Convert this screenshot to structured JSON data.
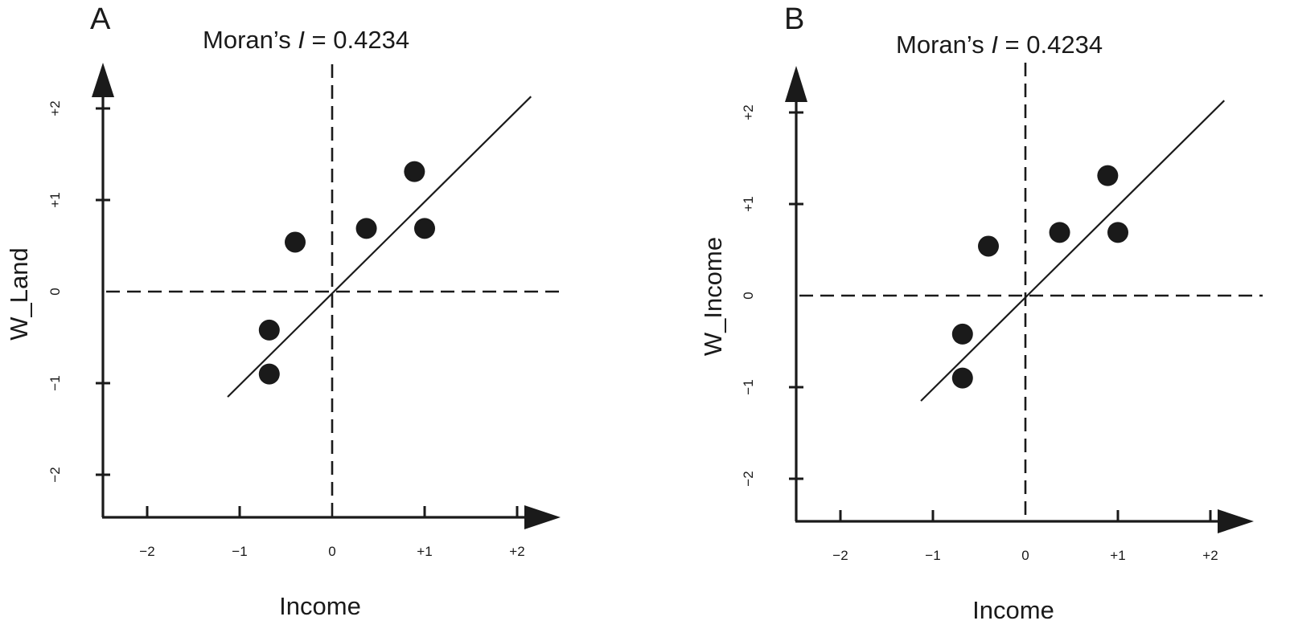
{
  "colors": {
    "ink": "#1a1a1a",
    "background": "#ffffff"
  },
  "chart_data": [
    {
      "type": "scatter",
      "panel_label": "A",
      "title_prefix": "Moran’s ",
      "title_italic": "I",
      "title_suffix": " = 0.4234",
      "xlabel": "Income",
      "ylabel": "W_Land",
      "xlim": [
        -2.5,
        2.5
      ],
      "ylim": [
        -2.5,
        2.5
      ],
      "x_ticks": [
        -2,
        -1,
        0,
        1,
        2
      ],
      "x_tick_labels": [
        "−2",
        "−1",
        "0",
        "+1",
        "+2"
      ],
      "y_ticks": [
        -2,
        -1,
        0,
        1,
        2
      ],
      "y_tick_labels": [
        "−2",
        "−1",
        "0",
        "+1",
        "+2"
      ],
      "points": [
        {
          "x": -0.4,
          "y": 0.54
        },
        {
          "x": 0.37,
          "y": 0.69
        },
        {
          "x": 0.89,
          "y": 1.31
        },
        {
          "x": 1.0,
          "y": 0.69
        },
        {
          "x": -0.68,
          "y": -0.42
        },
        {
          "x": -0.68,
          "y": -0.9
        }
      ],
      "regression_line": {
        "x": [
          -1.13,
          2.15
        ],
        "y": [
          -1.15,
          2.13
        ]
      },
      "reference_lines": {
        "x": 0,
        "y": 0
      }
    },
    {
      "type": "scatter",
      "panel_label": "B",
      "title_prefix": "Moran’s ",
      "title_italic": "I",
      "title_suffix": " = 0.4234",
      "xlabel": "Income",
      "ylabel": "W_Income",
      "xlim": [
        -2.5,
        2.5
      ],
      "ylim": [
        -2.5,
        2.5
      ],
      "x_ticks": [
        -2,
        -1,
        0,
        1,
        2
      ],
      "x_tick_labels": [
        "−2",
        "−1",
        "0",
        "+1",
        "+2"
      ],
      "y_ticks": [
        -2,
        -1,
        0,
        1,
        2
      ],
      "y_tick_labels": [
        "−2",
        "−1",
        "0",
        "+1",
        "+2"
      ],
      "points": [
        {
          "x": -0.4,
          "y": 0.54
        },
        {
          "x": 0.37,
          "y": 0.69
        },
        {
          "x": 0.89,
          "y": 1.31
        },
        {
          "x": 1.0,
          "y": 0.69
        },
        {
          "x": -0.68,
          "y": -0.42
        },
        {
          "x": -0.68,
          "y": -0.9
        }
      ],
      "regression_line": {
        "x": [
          -1.13,
          2.15
        ],
        "y": [
          -1.15,
          2.13
        ]
      },
      "reference_lines": {
        "x": 0,
        "y": 0
      }
    }
  ]
}
